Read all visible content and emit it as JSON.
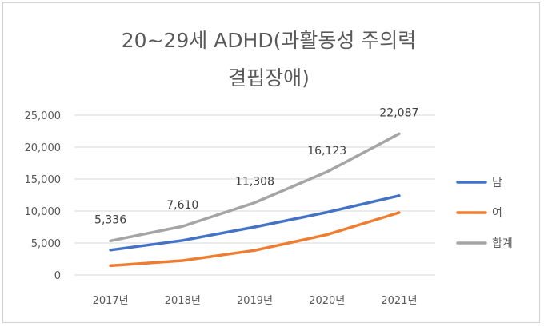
{
  "chart_data": {
    "type": "line",
    "title_lines": [
      "20~29세 ADHD(과활동성 주의력",
      "결핍장애)"
    ],
    "categories": [
      "2017년",
      "2018년",
      "2019년",
      "2020년",
      "2021년"
    ],
    "ylim": [
      0,
      25000
    ],
    "yticks": [
      "0",
      "5,000",
      "10,000",
      "15,000",
      "20,000",
      "25,000"
    ],
    "ytick_values": [
      0,
      5000,
      10000,
      15000,
      20000,
      25000
    ],
    "grid": true,
    "legend_position": "right",
    "series": [
      {
        "name": "남",
        "color": "#4472C4",
        "values": [
          3900,
          5400,
          7500,
          9800,
          12400
        ]
      },
      {
        "name": "여",
        "color": "#ED7D31",
        "values": [
          1450,
          2250,
          3850,
          6300,
          9750
        ]
      },
      {
        "name": "합계",
        "color": "#A5A5A5",
        "values": [
          5336,
          7610,
          11308,
          16123,
          22087
        ],
        "data_labels": [
          "5,336",
          "7,610",
          "11,308",
          "16,123",
          "22,087"
        ]
      }
    ]
  }
}
